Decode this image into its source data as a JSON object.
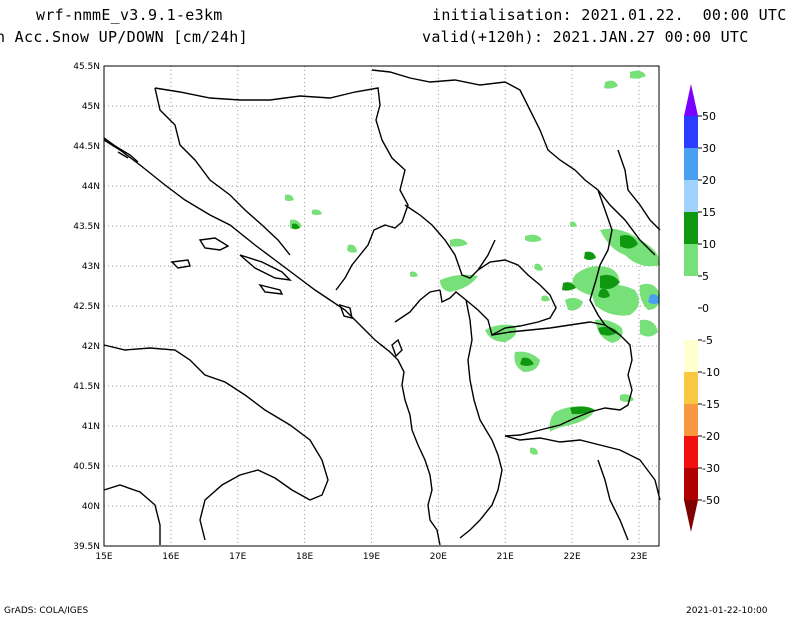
{
  "header": {
    "model": "wrf-nmmE_v3.9.1-e3km",
    "field": "n Acc.Snow UP/DOWN [cm/24h]",
    "init": "initialisation: 2021.01.22.  00:00 UTC",
    "valid": "valid(+120h): 2021.JAN.27 00:00 UTC"
  },
  "footer": {
    "left": "GrADS: COLA/IGES",
    "right": "2021-01-22-10:00"
  },
  "map": {
    "lon_range": [
      15,
      23.3
    ],
    "lat_range": [
      39.5,
      45.5
    ],
    "lon_ticks": [
      "15E",
      "16E",
      "17E",
      "18E",
      "19E",
      "20E",
      "21E",
      "22E",
      "23E"
    ],
    "lat_ticks": [
      "39.5N",
      "40N",
      "40.5N",
      "41N",
      "41.5N",
      "42N",
      "42.5N",
      "43N",
      "43.5N",
      "44N",
      "44.5N",
      "45N",
      "45.5N"
    ],
    "grid": true
  },
  "colorbar": {
    "labels": [
      "50",
      "30",
      "20",
      "15",
      "10",
      "5",
      "0",
      "-5",
      "-10",
      "-15",
      "-20",
      "-30",
      "-50"
    ],
    "colors": [
      "#7a00ff",
      "#2a3cff",
      "#4aa0f0",
      "#a0d2ff",
      "#109910",
      "#78e078",
      "#ffffff",
      "#ffffff",
      "#ffffd0",
      "#f8c840",
      "#f89840",
      "#f01010",
      "#b00000",
      "#800000"
    ]
  }
}
